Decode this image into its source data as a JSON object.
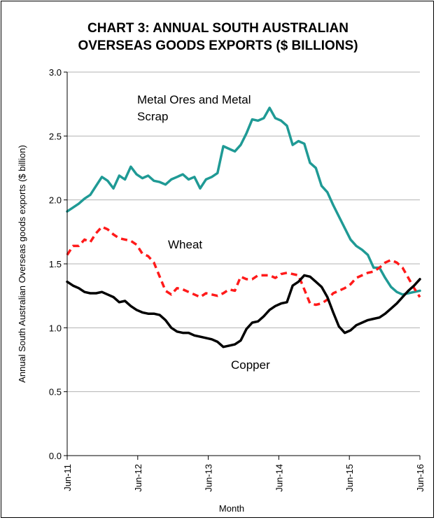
{
  "chart_data": {
    "type": "line",
    "title_line1": "CHART 3: ANNUAL SOUTH AUSTRALIAN",
    "title_line2": "OVERSEAS GOODS EXPORTS ($ BILLIONS)",
    "xlabel": "Month",
    "ylabel": "Annual South Australian Overseas  goods exports ($ billion)",
    "ylim": [
      0,
      3.0
    ],
    "yticks": [
      "0.0",
      "0.5",
      "1.0",
      "1.5",
      "2.0",
      "2.5",
      "3.0"
    ],
    "x_start": "Jun-11",
    "x_end": "Jun-16",
    "xticks": [
      "Jun-11",
      "Jun-12",
      "Jun-13",
      "Jun-14",
      "Jun-15",
      "Jun-16"
    ],
    "grid": true,
    "annotations": {
      "metal_line1": "Metal Ores and Metal",
      "metal_line2": "Scrap",
      "wheat": "Wheat",
      "copper": "Copper"
    },
    "series": [
      {
        "name": "Metal Ores and Metal Scrap",
        "color": "#1f9a95",
        "dash": "solid",
        "values": [
          1.91,
          1.94,
          1.97,
          2.01,
          2.04,
          2.11,
          2.18,
          2.15,
          2.09,
          2.19,
          2.16,
          2.26,
          2.2,
          2.17,
          2.19,
          2.15,
          2.14,
          2.12,
          2.16,
          2.18,
          2.2,
          2.16,
          2.18,
          2.09,
          2.16,
          2.18,
          2.21,
          2.42,
          2.4,
          2.38,
          2.43,
          2.52,
          2.63,
          2.62,
          2.64,
          2.72,
          2.64,
          2.62,
          2.58,
          2.43,
          2.46,
          2.44,
          2.29,
          2.25,
          2.11,
          2.06,
          1.96,
          1.87,
          1.78,
          1.69,
          1.64,
          1.61,
          1.57,
          1.47,
          1.47,
          1.39,
          1.32,
          1.28,
          1.26,
          1.27,
          1.28,
          1.29
        ]
      },
      {
        "name": "Wheat",
        "color": "#ff1a1a",
        "dash": "dashed",
        "values": [
          1.57,
          1.64,
          1.64,
          1.69,
          1.67,
          1.74,
          1.79,
          1.77,
          1.73,
          1.7,
          1.69,
          1.68,
          1.65,
          1.58,
          1.56,
          1.51,
          1.4,
          1.29,
          1.26,
          1.31,
          1.3,
          1.28,
          1.26,
          1.24,
          1.27,
          1.26,
          1.25,
          1.27,
          1.3,
          1.29,
          1.4,
          1.38,
          1.38,
          1.41,
          1.41,
          1.41,
          1.39,
          1.42,
          1.43,
          1.42,
          1.41,
          1.3,
          1.19,
          1.18,
          1.19,
          1.22,
          1.27,
          1.29,
          1.31,
          1.34,
          1.39,
          1.41,
          1.43,
          1.44,
          1.47,
          1.51,
          1.53,
          1.51,
          1.47,
          1.39,
          1.31,
          1.24
        ]
      },
      {
        "name": "Copper",
        "color": "#000000",
        "dash": "solid",
        "values": [
          1.36,
          1.33,
          1.31,
          1.28,
          1.27,
          1.27,
          1.28,
          1.26,
          1.24,
          1.2,
          1.21,
          1.17,
          1.14,
          1.12,
          1.11,
          1.11,
          1.1,
          1.06,
          1.0,
          0.97,
          0.96,
          0.96,
          0.94,
          0.93,
          0.92,
          0.91,
          0.89,
          0.85,
          0.86,
          0.87,
          0.9,
          0.99,
          1.04,
          1.05,
          1.09,
          1.14,
          1.17,
          1.19,
          1.2,
          1.33,
          1.36,
          1.41,
          1.4,
          1.36,
          1.32,
          1.24,
          1.12,
          1.01,
          0.96,
          0.98,
          1.02,
          1.04,
          1.06,
          1.07,
          1.08,
          1.11,
          1.15,
          1.19,
          1.24,
          1.29,
          1.33,
          1.38
        ]
      }
    ]
  }
}
